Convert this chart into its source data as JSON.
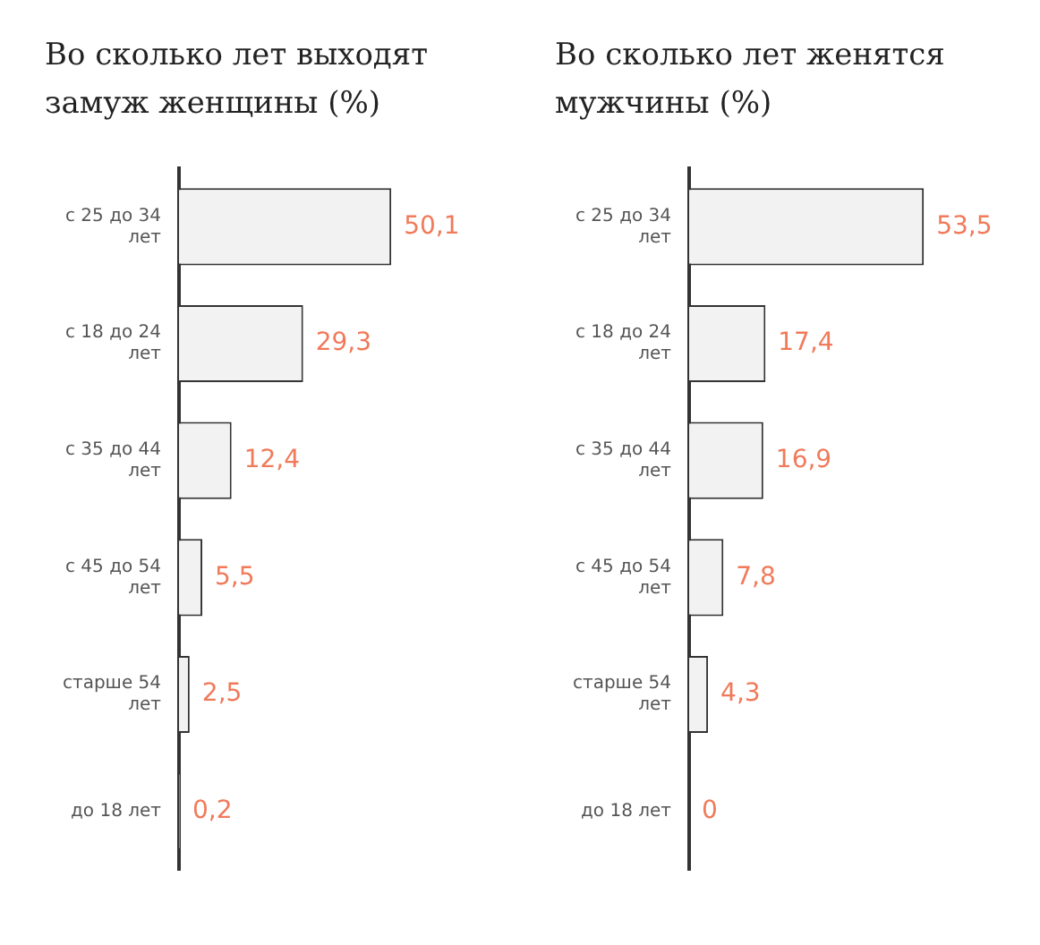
{
  "chart_data": [
    {
      "type": "bar",
      "orientation": "horizontal",
      "title": "Во сколько лет выходят замуж женщины (%)",
      "categories": [
        "с 25 до 34 лет",
        "с 18 до 24 лет",
        "с 35 до 44 лет",
        "с 45 до 54 лет",
        "старше 54 лет",
        "до 18 лет"
      ],
      "values": [
        50.1,
        29.3,
        12.4,
        5.5,
        2.5,
        0.2
      ],
      "color": "#f2f2f2",
      "value_labels": [
        "50,1",
        "29,3",
        "12,4",
        "5,5",
        "2,5",
        "0,2"
      ],
      "grid": false,
      "legend": false,
      "tick_labels": "y"
    },
    {
      "type": "bar",
      "orientation": "horizontal",
      "title": "Во сколько лет женятся мужчины (%)",
      "categories": [
        "с 25 до 34 лет",
        "с 18 до 24 лет",
        "с 35 до 44 лет",
        "с 45 до 54 лет",
        "старше 54 лет",
        "до 18 лет"
      ],
      "values": [
        53.5,
        17.4,
        16.9,
        7.8,
        4.3,
        0
      ],
      "color": "#f2f2f2",
      "value_labels": [
        "53,5",
        "17,4",
        "16,9",
        "7,8",
        "4,3",
        "0"
      ],
      "grid": false,
      "legend": false,
      "tick_labels": "y"
    }
  ]
}
